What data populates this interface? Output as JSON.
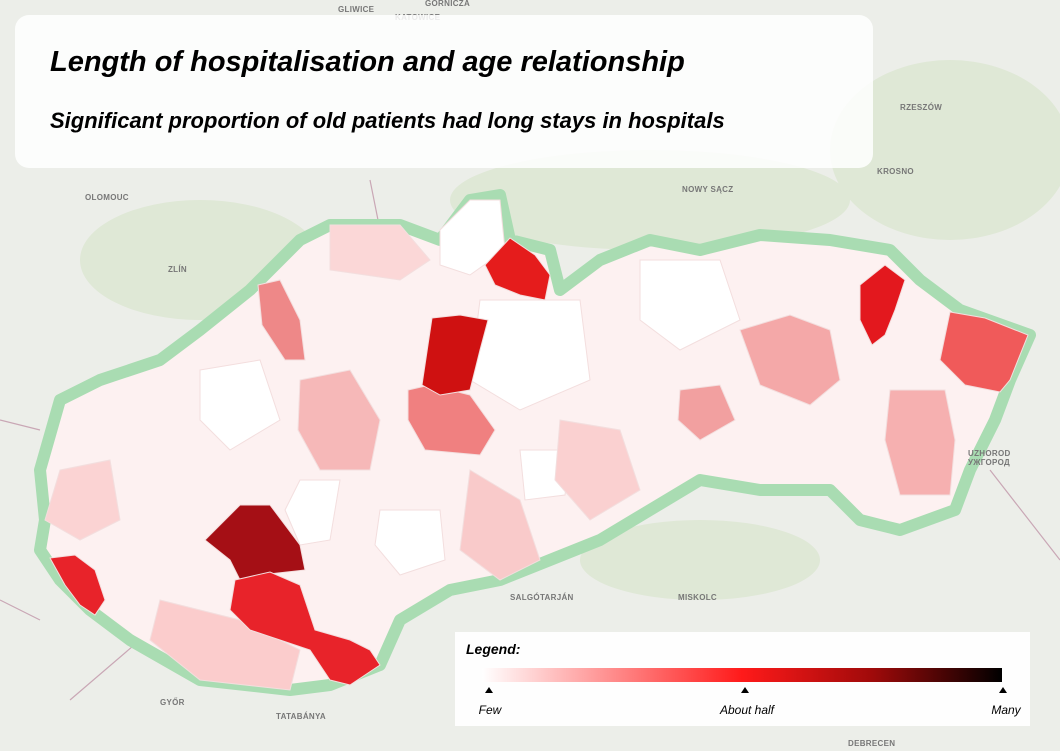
{
  "header": {
    "title": "Length of hospitalisation and age relationship",
    "subtitle": "Significant proportion of old patients had long stays in hospitals"
  },
  "legend": {
    "title": "Legend:",
    "labels": [
      "Few",
      "About half",
      "Many"
    ]
  },
  "places": [
    {
      "label": "GLIWICE"
    },
    {
      "label": "KATOWICE"
    },
    {
      "label": "GÓRNICZA"
    },
    {
      "label": "RZESZÓW"
    },
    {
      "label": "OLOMOUC"
    },
    {
      "label": "ZLÍN"
    },
    {
      "label": "NOWY SĄCZ"
    },
    {
      "label": "KROSNO"
    },
    {
      "label": "UZHOROD"
    },
    {
      "label": "УЖГОРОД"
    },
    {
      "label": "SALGÓTARJÁN"
    },
    {
      "label": "MISKOLC"
    },
    {
      "label": "GYŐR"
    },
    {
      "label": "TATABÁNYA"
    },
    {
      "label": "DEBRECEN"
    }
  ]
}
